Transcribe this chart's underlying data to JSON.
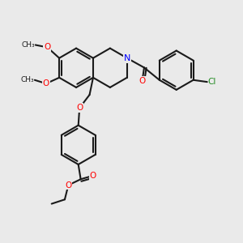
{
  "background_color": "#eaeaea",
  "bond_color": "#1a1a1a",
  "N_color": "#0000ff",
  "O_color": "#ff0000",
  "Cl_color": "#228B22",
  "line_width": 1.5,
  "figsize": [
    3.0,
    3.0
  ],
  "dpi": 100,
  "xlim": [
    0,
    10
  ],
  "ylim": [
    0,
    10
  ]
}
